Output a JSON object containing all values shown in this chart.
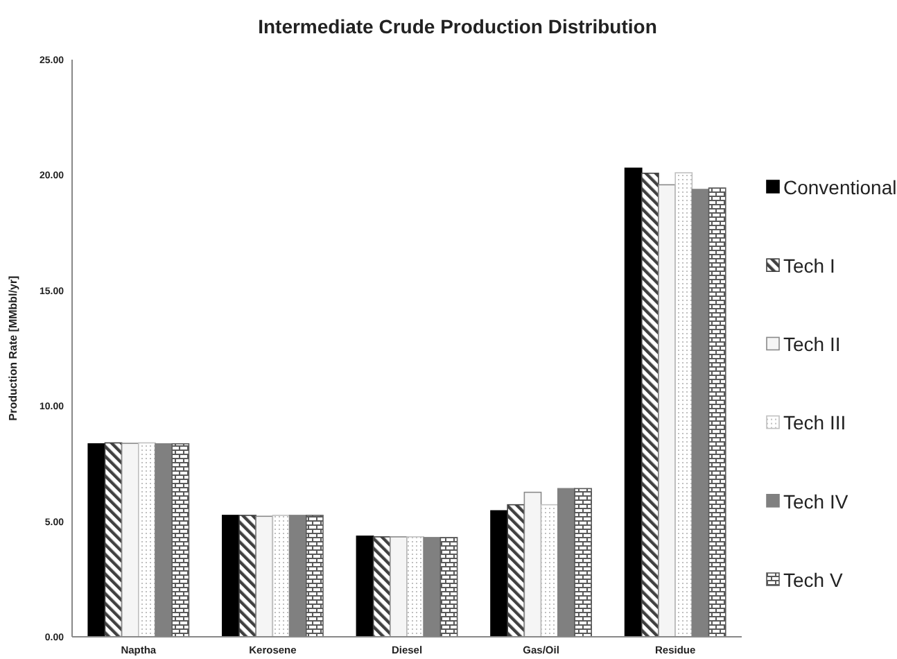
{
  "chart_data": {
    "type": "bar",
    "title": "Intermediate Crude Production Distribution",
    "ylabel": "Production  Rate [MMbbl/yr]",
    "categories": [
      "Naptha",
      "Kerosene",
      "Diesel",
      "Gas/Oil",
      "Residue"
    ],
    "series": [
      {
        "name": "Conventional",
        "color": "#000000",
        "values": [
          8.36,
          5.26,
          4.36,
          5.46,
          20.3
        ]
      },
      {
        "name": "Tech I",
        "color": "#404040",
        "values": [
          8.4,
          5.26,
          4.33,
          5.72,
          20.08
        ]
      },
      {
        "name": "Tech II",
        "color": "#f5f5f5",
        "values": [
          8.38,
          5.22,
          4.33,
          6.26,
          19.58
        ]
      },
      {
        "name": "Tech III",
        "color": "#c0c0c0",
        "values": [
          8.4,
          5.26,
          4.33,
          5.72,
          20.1
        ]
      },
      {
        "name": "Tech IV",
        "color": "#808080",
        "values": [
          8.36,
          5.26,
          4.3,
          6.42,
          19.38
        ]
      },
      {
        "name": "Tech V",
        "color": "#595959",
        "values": [
          8.36,
          5.26,
          4.3,
          6.42,
          19.44
        ]
      }
    ],
    "ylim": [
      0,
      25
    ],
    "yticks": [
      {
        "value": 0,
        "label": "0.00"
      },
      {
        "value": 5,
        "label": "5.00"
      },
      {
        "value": 10,
        "label": "10.00"
      },
      {
        "value": 15,
        "label": "15.00"
      },
      {
        "value": 20,
        "label": "20.00"
      },
      {
        "value": 25,
        "label": "25.00"
      }
    ],
    "grid": false,
    "legend": "right"
  }
}
